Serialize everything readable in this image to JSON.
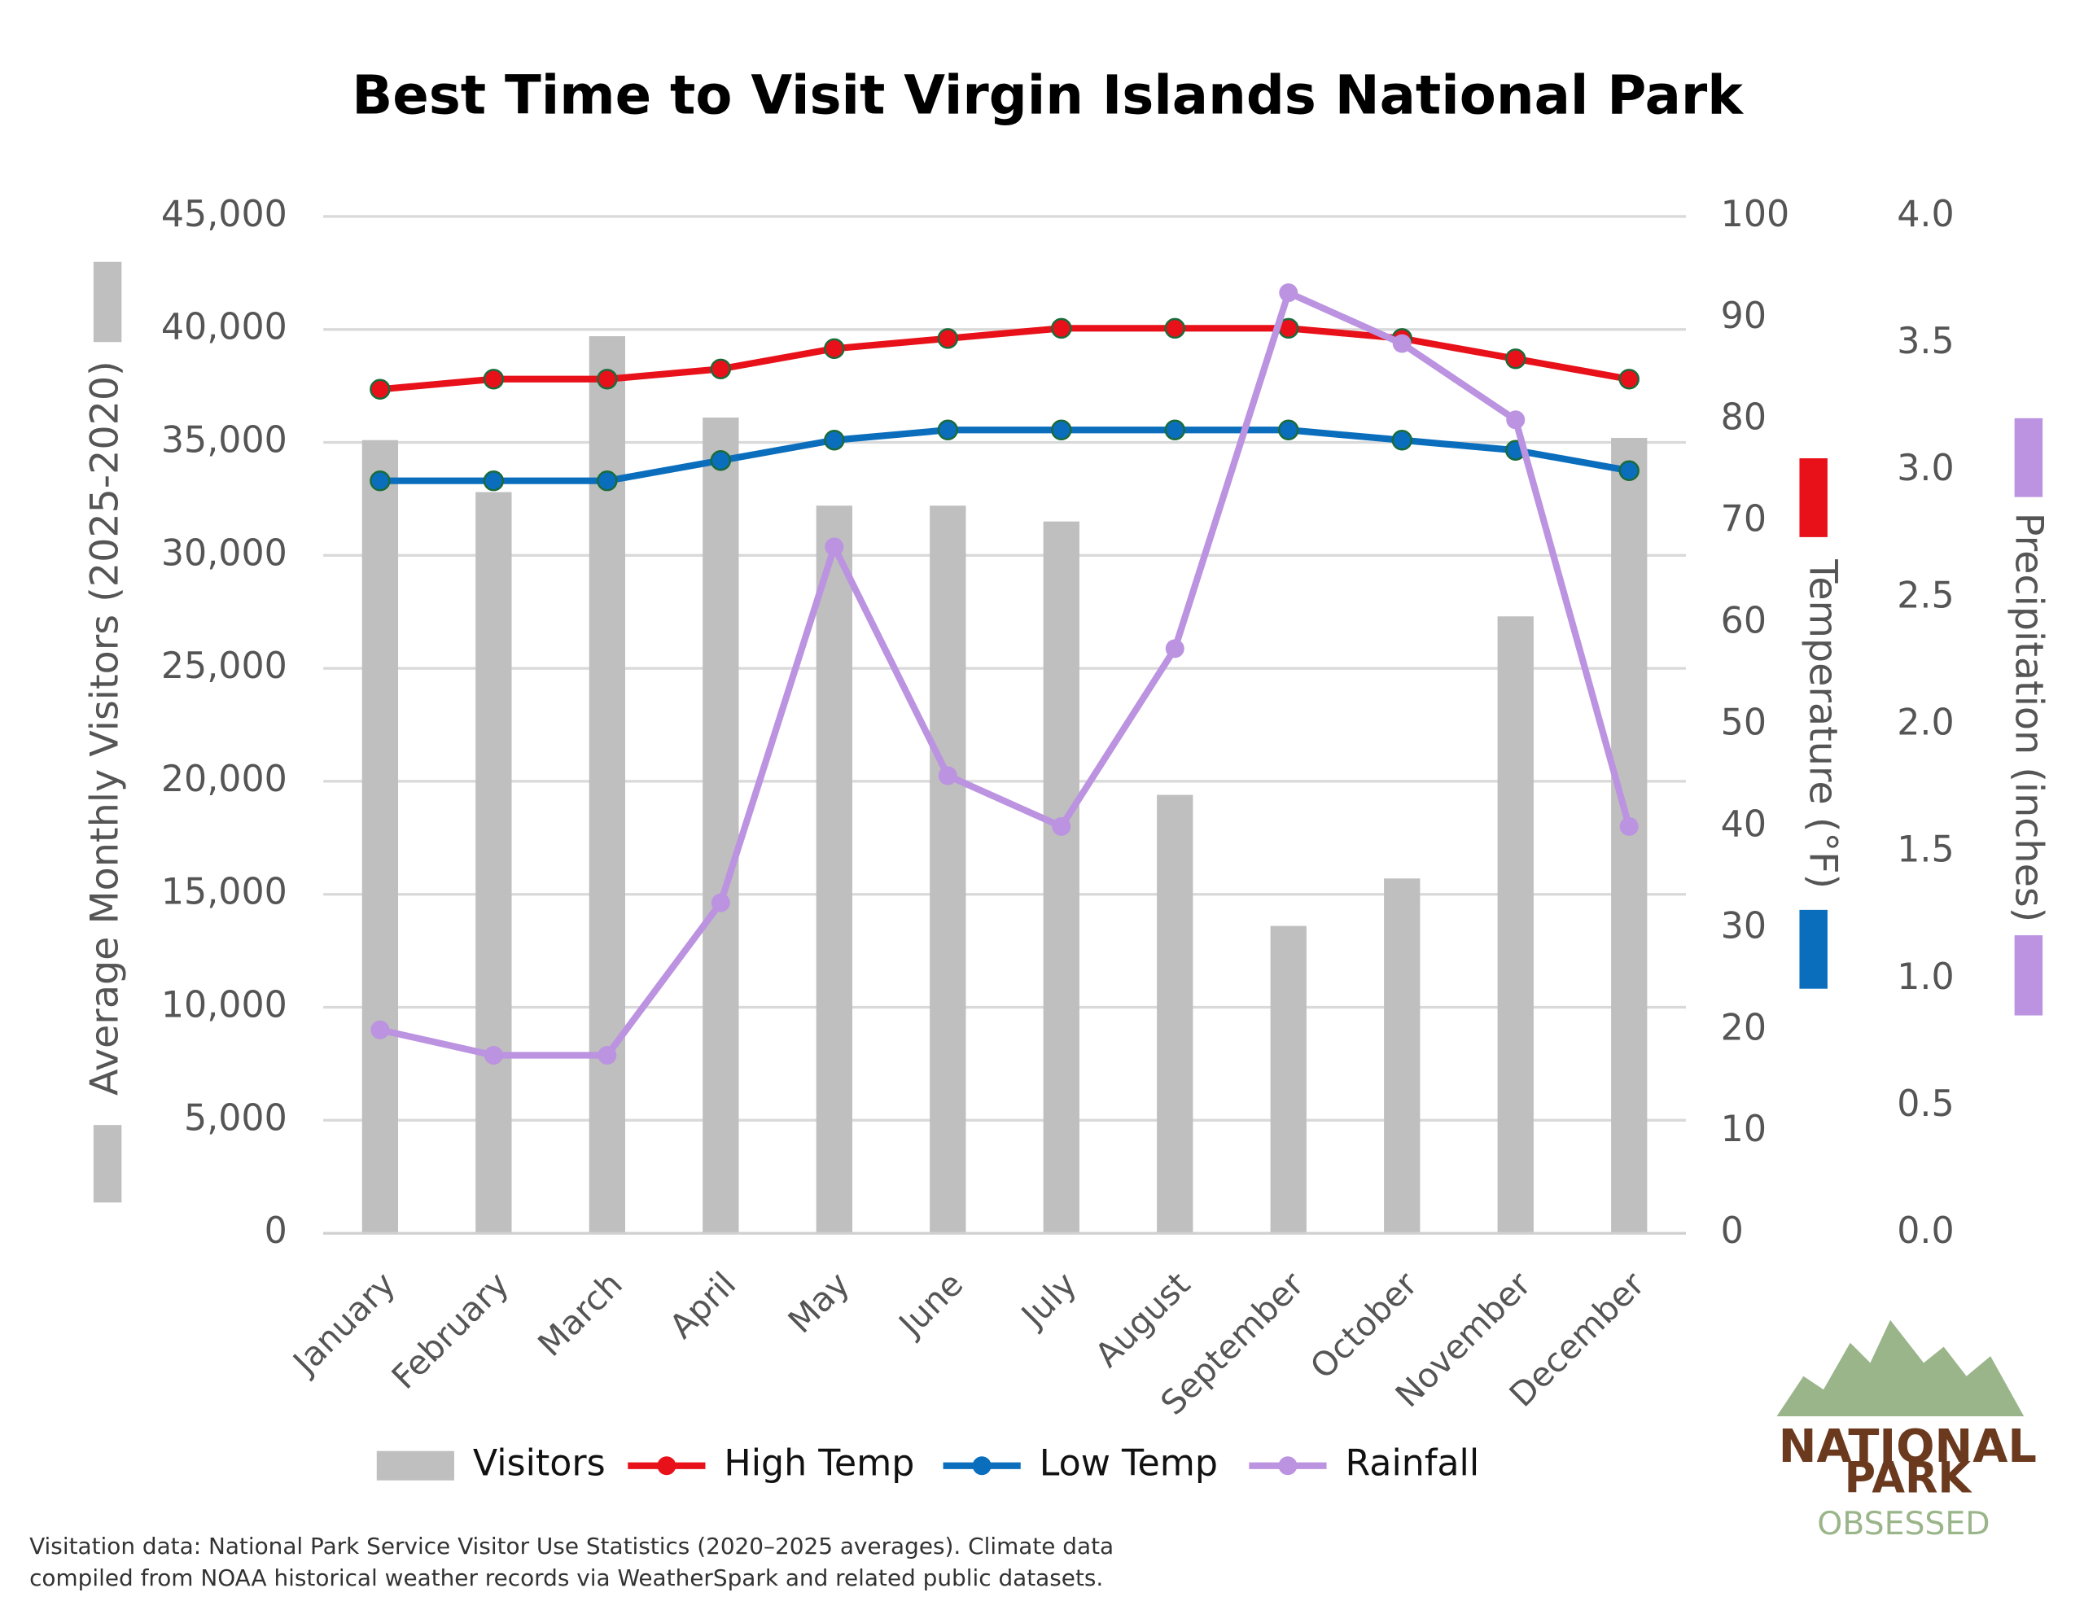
{
  "chart_data": {
    "type": "bar",
    "title": "Best Time to Visit Virgin Islands National Park",
    "y_label": "Average Monthly Visitors (2025-2020)",
    "y2_label": "Temperature (°F)",
    "y3_label": "Precipitation (inches)",
    "categories": [
      "January",
      "February",
      "March",
      "April",
      "May",
      "June",
      "July",
      "August",
      "September",
      "October",
      "November",
      "December"
    ],
    "series": [
      {
        "name": "Visitors",
        "type": "bar",
        "color": "#bfbfbf",
        "values": [
          35100,
          32800,
          39700,
          36100,
          32200,
          32200,
          31500,
          19400,
          13600,
          15700,
          27300,
          35200
        ]
      },
      {
        "name": "High Temp",
        "type": "line",
        "axis": "y2",
        "color": "#e8111a",
        "values": [
          83,
          84,
          84,
          85,
          87,
          88,
          89,
          89,
          89,
          88,
          86,
          84
        ]
      },
      {
        "name": "Low Temp",
        "type": "line",
        "axis": "y2",
        "color": "#0a6ebd",
        "values": [
          74,
          74,
          74,
          76,
          78,
          79,
          79,
          79,
          79,
          78,
          77,
          75
        ]
      },
      {
        "name": "Rainfall",
        "type": "line",
        "axis": "y3",
        "color": "#bb93e0",
        "values": [
          0.8,
          0.7,
          0.7,
          1.3,
          2.7,
          1.8,
          1.6,
          2.3,
          3.7,
          3.5,
          3.2,
          1.6
        ]
      }
    ],
    "ylim": [
      0,
      45000
    ],
    "yticks": [
      0,
      {
        "value": 5000,
        "label": "5,000"
      },
      {
        "value": 10000,
        "label": "10,000"
      },
      {
        "value": 15000,
        "label": "15,000"
      },
      {
        "value": 20000,
        "label": "20,000"
      },
      {
        "value": 25000,
        "label": "25,000"
      },
      {
        "value": 30000,
        "label": "30,000"
      },
      {
        "value": 35000,
        "label": "35,000"
      },
      {
        "value": 40000,
        "label": "40,000"
      },
      {
        "value": 45000,
        "label": "45,000"
      }
    ],
    "y2lim": [
      0,
      100
    ],
    "y2ticks": [
      0,
      10,
      20,
      30,
      40,
      50,
      60,
      70,
      80,
      90,
      100
    ],
    "y3lim": [
      0,
      4
    ],
    "y3ticks": [
      {
        "value": 0,
        "label": "0.0"
      },
      0.5,
      {
        "value": 1,
        "label": "1.0"
      },
      1.5,
      {
        "value": 2,
        "label": "2.0"
      },
      2.5,
      {
        "value": 3,
        "label": "3.0"
      },
      3.5,
      {
        "value": 4,
        "label": "4.0"
      }
    ],
    "grid": true,
    "legend": "bottom",
    "source": [
      "Visitation data: National Park Service Visitor Use Statistics (2020–2025 averages). Climate data",
      "compiled from NOAA historical weather records via WeatherSpark and related public datasets."
    ]
  },
  "logo": {
    "line1": "NATIONAL",
    "line2": "PARK",
    "line3": "OBSESSED"
  }
}
